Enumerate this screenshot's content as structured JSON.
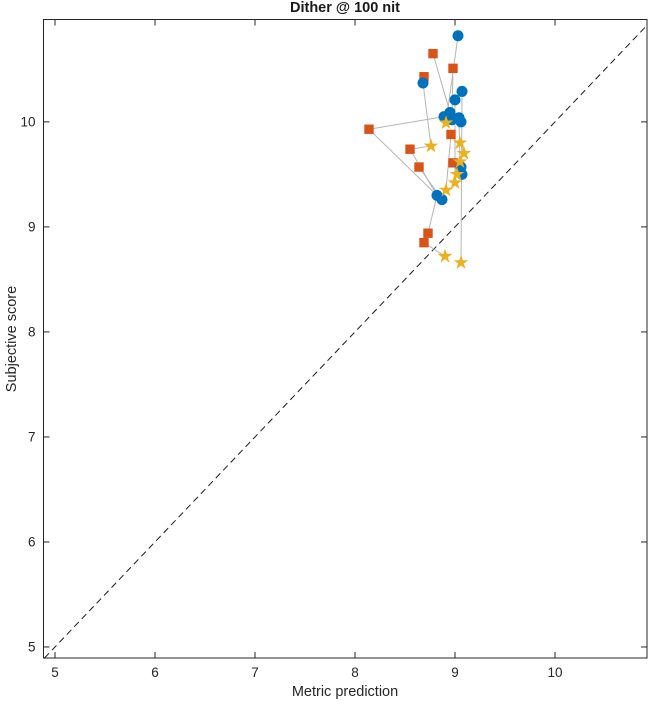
{
  "figure": {
    "background": "#ffffff"
  },
  "chart_data": {
    "type": "scatter",
    "title": "Dither @ 100 nit",
    "xlabel": "Metric prediction",
    "ylabel": "Subjective score",
    "xlim": [
      4.885,
      10.92
    ],
    "ylim": [
      4.895,
      10.975
    ],
    "xticks": [
      5,
      6,
      7,
      8,
      9,
      10
    ],
    "yticks": [
      5,
      6,
      7,
      8,
      9,
      10
    ],
    "grid": false,
    "legend": "none",
    "axis_color": "#262626",
    "identity_line": {
      "style": "dashed",
      "color": "#1a1a1a",
      "from": 4.895,
      "to": 10.92
    },
    "link_color": "#b5b5b5",
    "series": [
      {
        "name": "circles",
        "marker": "circle",
        "color": "#0072BD",
        "points": [
          [
            9.03,
            10.82
          ],
          [
            8.68,
            10.37
          ],
          [
            9.07,
            10.29
          ],
          [
            9.0,
            10.21
          ],
          [
            8.89,
            10.05
          ],
          [
            8.95,
            10.09
          ],
          [
            8.97,
            10.02
          ],
          [
            9.04,
            10.04
          ],
          [
            9.06,
            10.0
          ],
          [
            9.06,
            9.57
          ],
          [
            9.07,
            9.5
          ],
          [
            8.82,
            9.3
          ],
          [
            8.87,
            9.26
          ]
        ]
      },
      {
        "name": "squares",
        "marker": "square",
        "color": "#D95319",
        "points": [
          [
            8.78,
            10.65
          ],
          [
            8.98,
            10.51
          ],
          [
            8.69,
            10.43
          ],
          [
            8.14,
            9.93
          ],
          [
            8.96,
            9.88
          ],
          [
            8.55,
            9.74
          ],
          [
            8.64,
            9.57
          ],
          [
            8.98,
            9.61
          ],
          [
            8.73,
            8.94
          ],
          [
            8.69,
            8.85
          ]
        ]
      },
      {
        "name": "stars",
        "marker": "star",
        "color": "#EDB120",
        "points": [
          [
            8.91,
            9.99
          ],
          [
            9.05,
            9.8
          ],
          [
            8.76,
            9.77
          ],
          [
            9.09,
            9.7
          ],
          [
            9.05,
            9.62
          ],
          [
            9.02,
            9.5
          ],
          [
            9.0,
            9.42
          ],
          [
            8.91,
            9.35
          ],
          [
            8.9,
            8.72
          ],
          [
            9.06,
            8.66
          ]
        ]
      }
    ],
    "links": [
      [
        9.03,
        10.82,
        8.91,
        9.99
      ],
      [
        8.78,
        10.65,
        8.95,
        10.09
      ],
      [
        8.98,
        10.51,
        8.97,
        10.02
      ],
      [
        8.69,
        10.43,
        8.68,
        10.37
      ],
      [
        8.68,
        10.37,
        8.76,
        9.77
      ],
      [
        9.07,
        10.29,
        9.06,
        8.66
      ],
      [
        9.0,
        10.21,
        9.0,
        9.42
      ],
      [
        8.14,
        9.93,
        8.89,
        10.05
      ],
      [
        8.14,
        9.93,
        8.82,
        9.3
      ],
      [
        8.55,
        9.74,
        8.82,
        9.3
      ],
      [
        8.55,
        9.74,
        8.76,
        9.77
      ],
      [
        8.64,
        9.57,
        8.87,
        9.26
      ],
      [
        8.96,
        9.88,
        8.91,
        9.35
      ],
      [
        8.98,
        9.61,
        9.02,
        9.5
      ],
      [
        9.04,
        10.04,
        9.05,
        9.62
      ],
      [
        9.05,
        9.8,
        9.09,
        9.7
      ],
      [
        8.82,
        9.3,
        8.73,
        8.94
      ],
      [
        8.73,
        8.94,
        8.69,
        8.85
      ],
      [
        8.69,
        8.85,
        8.9,
        8.72
      ]
    ]
  }
}
